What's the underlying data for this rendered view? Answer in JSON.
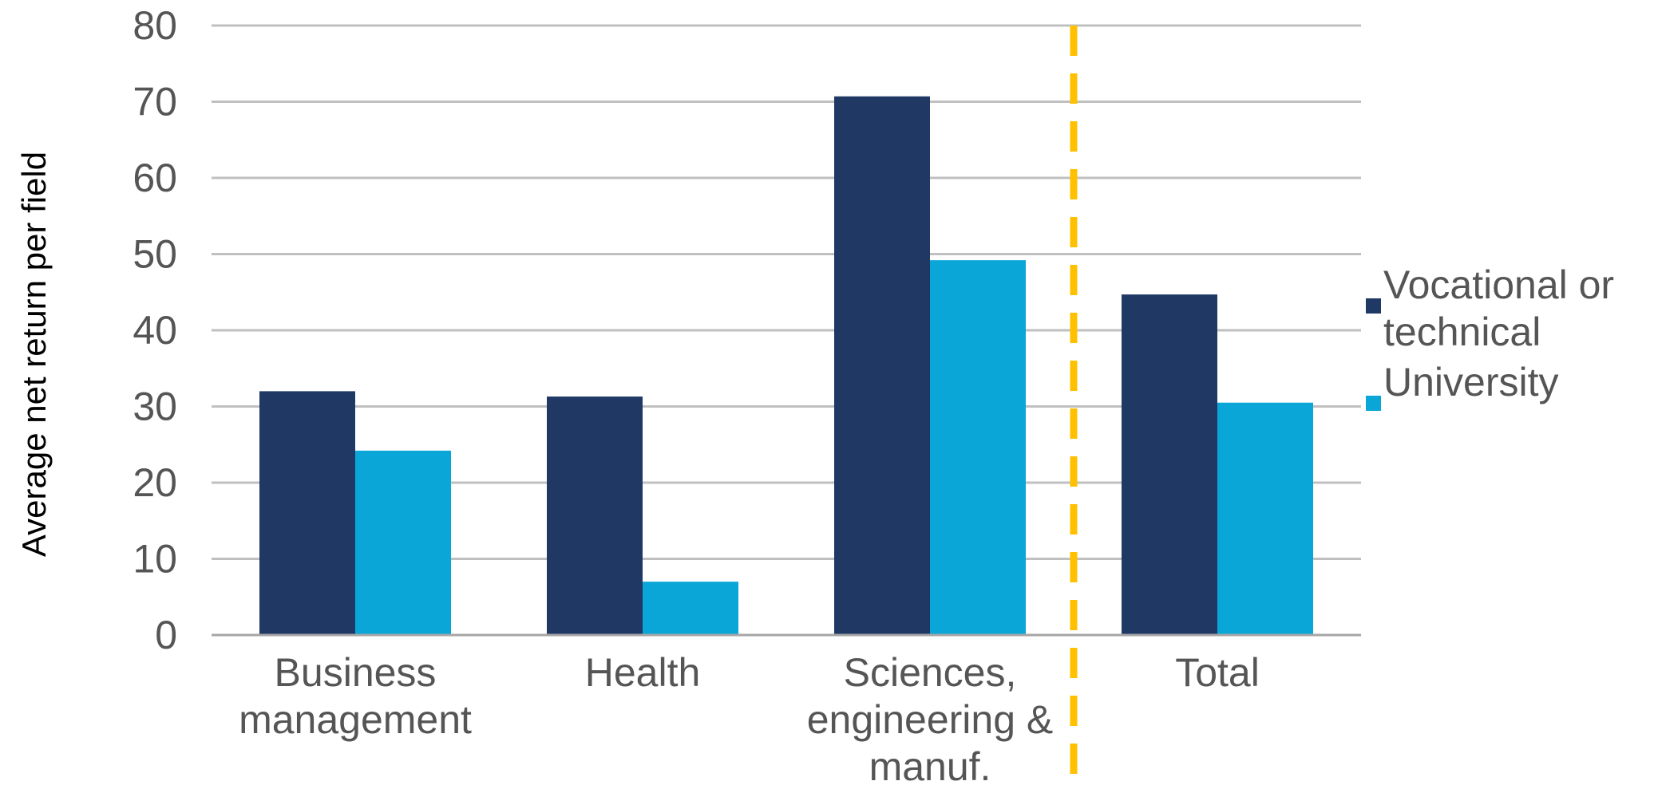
{
  "chart_data": {
    "type": "bar",
    "title": "",
    "xlabel": "",
    "ylabel": "Average net return per field",
    "ylim": [
      0,
      80
    ],
    "yticks": [
      0,
      10,
      20,
      30,
      40,
      50,
      60,
      70,
      80
    ],
    "grid": true,
    "legend_position": "right",
    "categories": [
      {
        "lines": [
          "Business",
          "management"
        ]
      },
      {
        "lines": [
          "Health"
        ]
      },
      {
        "lines": [
          "Sciences,",
          "engineering &",
          "manuf."
        ]
      },
      {
        "lines": [
          "Total"
        ]
      }
    ],
    "series": [
      {
        "name": "Vocational or technical",
        "legend_lines": [
          "Vocational or",
          "technical"
        ],
        "color": "#1f3864",
        "values": [
          32,
          31.3,
          70.7,
          44.7
        ]
      },
      {
        "name": "University",
        "legend_lines": [
          "University"
        ],
        "color": "#0aa6d8",
        "values": [
          24.2,
          7,
          49.2,
          30.5
        ]
      }
    ],
    "separator": {
      "after_category": 2,
      "style": "dashed",
      "color": "#ffc000"
    },
    "colors": {
      "grid": "#c0c0c0",
      "axis": "#a6a6a6",
      "text": "#555555"
    }
  }
}
